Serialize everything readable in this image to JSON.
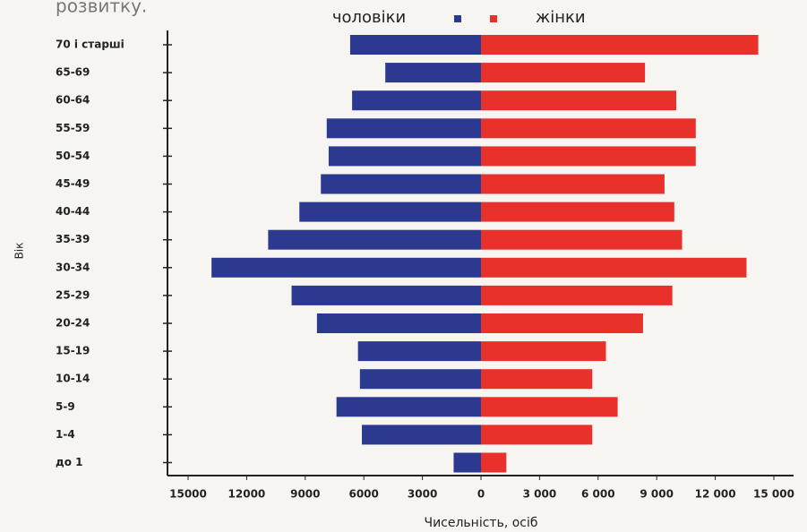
{
  "chart_data": {
    "type": "pyramid",
    "title": "розвитку.",
    "y_label": "Вік",
    "x_label": "Чисельність, осіб",
    "categories": [
      "70 і старші",
      "65-69",
      "60-64",
      "55-59",
      "50-54",
      "45-49",
      "40-44",
      "35-39",
      "30-34",
      "25-29",
      "20-24",
      "15-19",
      "10-14",
      "5-9",
      "1-4",
      "до 1"
    ],
    "series": [
      {
        "name": "чоловіки",
        "color": "#2b3990",
        "side": "left",
        "values": [
          6700,
          4900,
          6600,
          7900,
          7800,
          8200,
          9300,
          10900,
          13800,
          9700,
          8400,
          6300,
          6200,
          7400,
          6100,
          1400
        ]
      },
      {
        "name": "жінки",
        "color": "#e8312a",
        "side": "right",
        "values": [
          14200,
          8400,
          10000,
          11000,
          11000,
          9400,
          9900,
          10300,
          13600,
          9800,
          8300,
          6400,
          5700,
          7000,
          5700,
          1300
        ]
      }
    ],
    "xlim": [
      0,
      15000
    ],
    "xticks_left": [
      15000,
      12000,
      9000,
      6000,
      3000,
      0
    ],
    "xticks_right": [
      {
        "value": 3000,
        "label": "3 000"
      },
      {
        "value": 6000,
        "label": "6 000"
      },
      {
        "value": 9000,
        "label": "9 000"
      },
      {
        "value": 12000,
        "label": "12 000"
      },
      {
        "value": 15000,
        "label": "15 000"
      }
    ]
  }
}
